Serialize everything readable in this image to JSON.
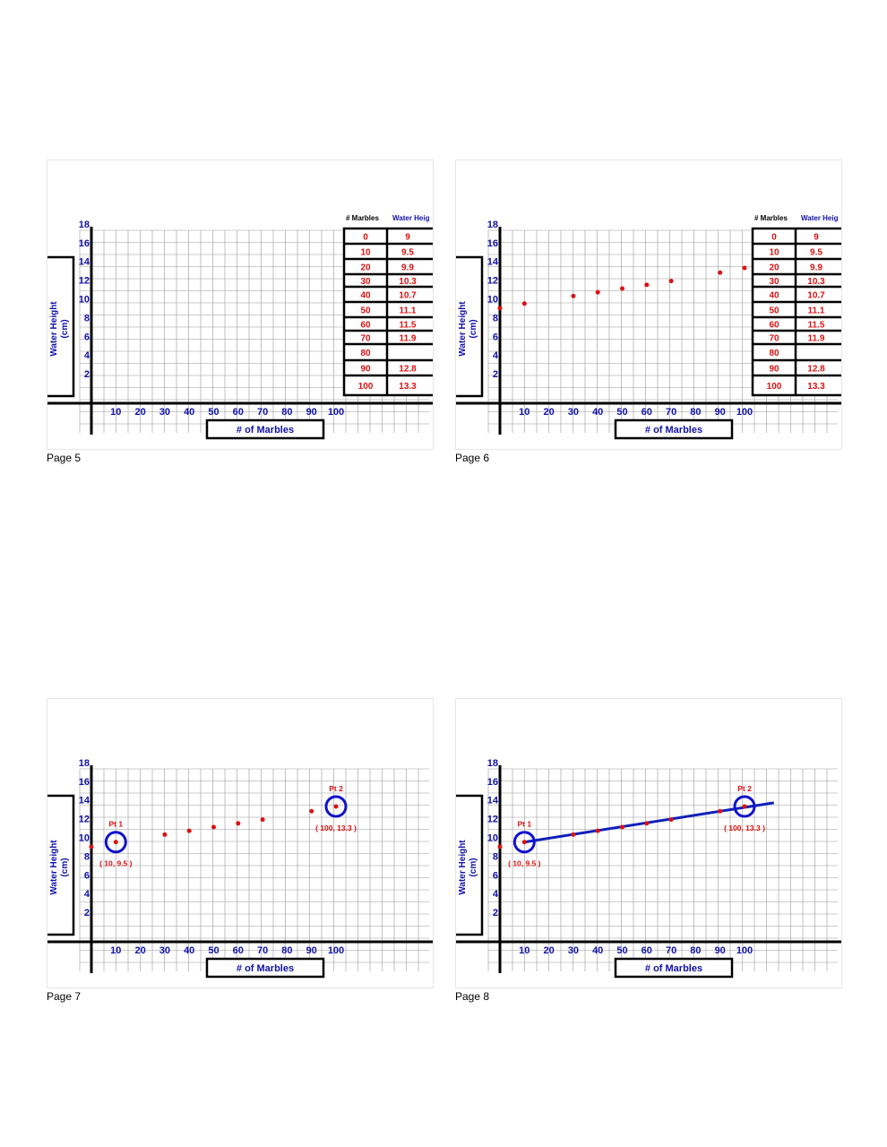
{
  "pages": [
    {
      "label": "Page 5",
      "show_points": false,
      "show_circles": false,
      "show_line": false,
      "show_table": true
    },
    {
      "label": "Page 6",
      "show_points": true,
      "show_circles": false,
      "show_line": false,
      "show_table": true
    },
    {
      "label": "Page 7",
      "show_points": true,
      "show_circles": true,
      "show_line": false,
      "show_table": false
    },
    {
      "label": "Page 8",
      "show_points": true,
      "show_circles": true,
      "show_line": true,
      "show_table": false
    }
  ],
  "table": {
    "header_marbles": "# Marbles",
    "header_height": "Water Heig",
    "rows": [
      {
        "marbles": "0",
        "height": "9"
      },
      {
        "marbles": "10",
        "height": "9.5"
      },
      {
        "marbles": "20",
        "height": "9.9"
      },
      {
        "marbles": "30",
        "height": "10.3"
      },
      {
        "marbles": "40",
        "height": "10.7"
      },
      {
        "marbles": "50",
        "height": "11.1"
      },
      {
        "marbles": "60",
        "height": "11.5"
      },
      {
        "marbles": "70",
        "height": "11.9"
      },
      {
        "marbles": "80",
        "height": ""
      },
      {
        "marbles": "90",
        "height": "12.8"
      },
      {
        "marbles": "100",
        "height": "13.3"
      }
    ]
  },
  "chart_data": {
    "type": "scatter",
    "xlabel": "# of Marbles",
    "ylabel_line1": "Water Height",
    "ylabel_line2": "(cm)",
    "x_ticks": [
      "10",
      "20",
      "30",
      "40",
      "50",
      "60",
      "70",
      "80",
      "90",
      "100"
    ],
    "y_ticks": [
      "18",
      "16",
      "14",
      "12",
      "10",
      "8",
      "6",
      "4",
      "2"
    ],
    "xlim": [
      0,
      100
    ],
    "ylim": [
      0,
      18
    ],
    "points": [
      {
        "x": 0,
        "y": 9
      },
      {
        "x": 10,
        "y": 9.5
      },
      {
        "x": 30,
        "y": 10.3
      },
      {
        "x": 40,
        "y": 10.7
      },
      {
        "x": 50,
        "y": 11.1
      },
      {
        "x": 60,
        "y": 11.5
      },
      {
        "x": 70,
        "y": 11.9
      },
      {
        "x": 90,
        "y": 12.8
      },
      {
        "x": 100,
        "y": 13.3
      }
    ],
    "pt1": {
      "label": "Pt 1",
      "coord": "( 10, 9.5 )",
      "x": 10,
      "y": 9.5
    },
    "pt2": {
      "label": "Pt 2",
      "coord": "( 100, 13.3 )",
      "x": 100,
      "y": 13.3
    },
    "line": {
      "from": [
        10,
        9.5
      ],
      "to": [
        112,
        13.7
      ]
    },
    "colors": {
      "axis_labels": "#1010aa",
      "data": "#dd1111",
      "circle": "#1010cc",
      "line": "#1020bb",
      "grid": "#999999"
    }
  }
}
